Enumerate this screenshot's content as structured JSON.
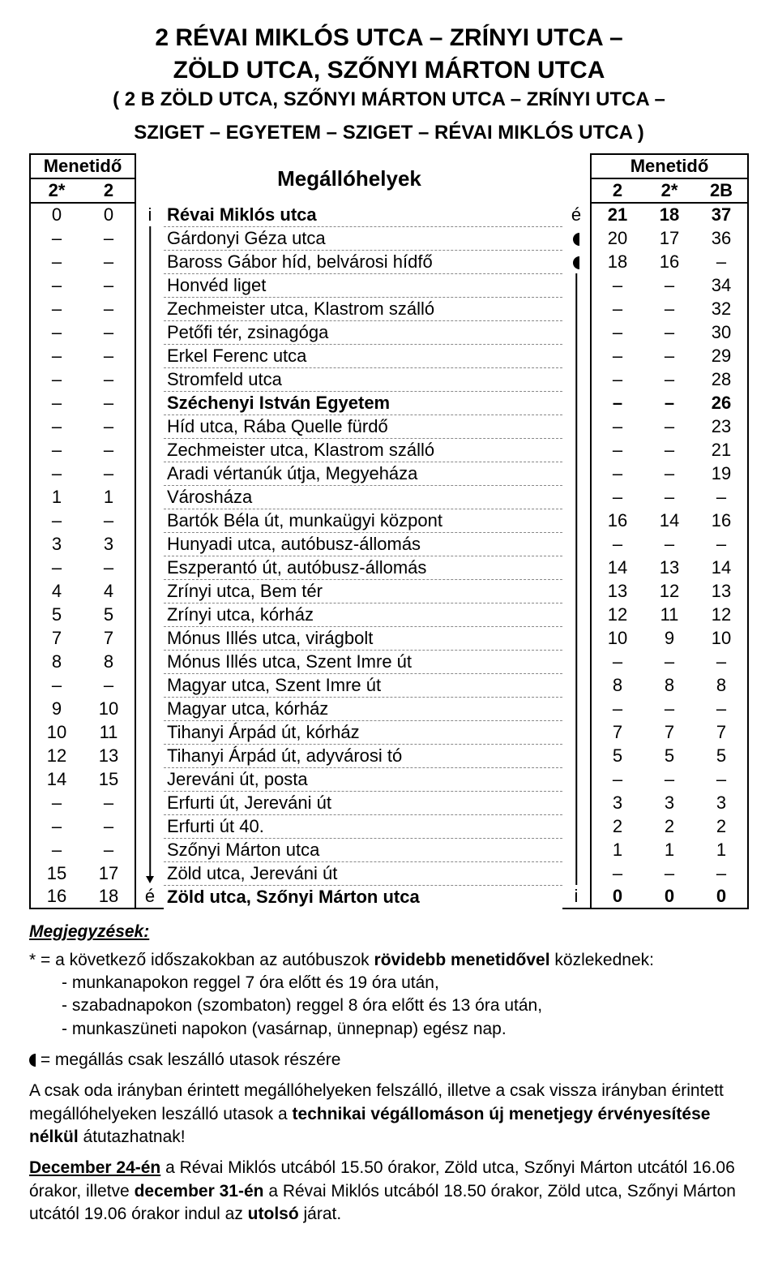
{
  "title_line1": "2  RÉVAI MIKLÓS UTCA – ZRÍNYI UTCA –",
  "title_line2": "ZÖLD UTCA, SZŐNYI MÁRTON UTCA",
  "subtitle_line1": "( 2 B  ZÖLD UTCA, SZŐNYI MÁRTON UTCA – ZRÍNYI UTCA –",
  "subtitle_line2": "SZIGET – EGYETEM – SZIGET – RÉVAI MIKLÓS UTCA )",
  "headers": {
    "menetido": "Menetidő",
    "megallo": "Megállóhelyek",
    "l1": "2*",
    "l2": "2",
    "r1": "2",
    "r2": "2*",
    "r3": "2B"
  },
  "rows": [
    {
      "l1": "0",
      "l2": "0",
      "iL": "i",
      "stop": "Révai Miklós utca",
      "iR": "é",
      "r1": "21",
      "r2": "18",
      "r3": "37",
      "bold": true,
      "arrowL": "",
      "arrowR": ""
    },
    {
      "l1": "–",
      "l2": "–",
      "iL": "",
      "stop": "Gárdonyi Géza utca",
      "iR": "◖",
      "r1": "20",
      "r2": "17",
      "r3": "36",
      "arrowR": "up"
    },
    {
      "l1": "–",
      "l2": "–",
      "iL": "",
      "stop": "Baross Gábor híd, belvárosi hídfő",
      "iR": "◖",
      "r1": "18",
      "r2": "16",
      "r3": "–",
      "arrowR": "line"
    },
    {
      "l1": "–",
      "l2": "–",
      "iL": "",
      "stop": "Honvéd liget",
      "iR": "",
      "r1": "–",
      "r2": "–",
      "r3": "34",
      "arrowR": "line"
    },
    {
      "l1": "–",
      "l2": "–",
      "iL": "",
      "stop": "Zechmeister utca, Klastrom szálló",
      "iR": "",
      "r1": "–",
      "r2": "–",
      "r3": "32",
      "arrowR": "line"
    },
    {
      "l1": "–",
      "l2": "–",
      "iL": "",
      "stop": "Petőfi tér, zsinagóga",
      "iR": "",
      "r1": "–",
      "r2": "–",
      "r3": "30",
      "arrowR": "line"
    },
    {
      "l1": "–",
      "l2": "–",
      "iL": "",
      "stop": "Erkel Ferenc utca",
      "iR": "",
      "r1": "–",
      "r2": "–",
      "r3": "29",
      "arrowR": "line"
    },
    {
      "l1": "–",
      "l2": "–",
      "iL": "",
      "stop": "Stromfeld utca",
      "iR": "",
      "r1": "–",
      "r2": "–",
      "r3": "28",
      "arrowR": "line"
    },
    {
      "l1": "–",
      "l2": "–",
      "iL": "",
      "stop": "Széchenyi István Egyetem",
      "iR": "",
      "r1": "–",
      "r2": "–",
      "r3": "26",
      "bold": true,
      "arrowR": "line"
    },
    {
      "l1": "–",
      "l2": "–",
      "iL": "",
      "stop": "Híd utca, Rába Quelle fürdő",
      "iR": "",
      "r1": "–",
      "r2": "–",
      "r3": "23",
      "arrowR": "line"
    },
    {
      "l1": "–",
      "l2": "–",
      "iL": "",
      "stop": "Zechmeister utca, Klastrom szálló",
      "iR": "",
      "r1": "–",
      "r2": "–",
      "r3": "21",
      "arrowR": "line"
    },
    {
      "l1": "–",
      "l2": "–",
      "iL": "",
      "stop": "Aradi vértanúk útja, Megyeháza",
      "iR": "",
      "r1": "–",
      "r2": "–",
      "r3": "19",
      "arrowR": "line"
    },
    {
      "l1": "1",
      "l2": "1",
      "iL": "",
      "stop": "Városháza",
      "iR": "",
      "r1": "–",
      "r2": "–",
      "r3": "–",
      "arrowR": "line"
    },
    {
      "l1": "–",
      "l2": "–",
      "iL": "",
      "stop": "Bartók Béla út, munkaügyi központ",
      "iR": "",
      "r1": "16",
      "r2": "14",
      "r3": "16",
      "arrowR": "line"
    },
    {
      "l1": "3",
      "l2": "3",
      "iL": "",
      "stop": "Hunyadi utca, autóbusz-állomás",
      "iR": "",
      "r1": "–",
      "r2": "–",
      "r3": "–",
      "arrowR": "line"
    },
    {
      "l1": "–",
      "l2": "–",
      "iL": "",
      "stop": "Eszperantó út, autóbusz-állomás",
      "iR": "",
      "r1": "14",
      "r2": "13",
      "r3": "14",
      "arrowR": "line"
    },
    {
      "l1": "4",
      "l2": "4",
      "iL": "",
      "stop": "Zrínyi utca, Bem tér",
      "iR": "",
      "r1": "13",
      "r2": "12",
      "r3": "13",
      "arrowR": "line"
    },
    {
      "l1": "5",
      "l2": "5",
      "iL": "",
      "stop": "Zrínyi utca, kórház",
      "iR": "",
      "r1": "12",
      "r2": "11",
      "r3": "12",
      "arrowR": "line"
    },
    {
      "l1": "7",
      "l2": "7",
      "iL": "",
      "stop": "Mónus Illés utca, virágbolt",
      "iR": "",
      "r1": "10",
      "r2": "9",
      "r3": "10",
      "arrowR": "line"
    },
    {
      "l1": "8",
      "l2": "8",
      "iL": "",
      "stop": "Mónus Illés utca, Szent Imre út",
      "iR": "",
      "r1": "–",
      "r2": "–",
      "r3": "–",
      "arrowR": "line"
    },
    {
      "l1": "–",
      "l2": "–",
      "iL": "",
      "stop": "Magyar utca, Szent Imre út",
      "iR": "",
      "r1": "8",
      "r2": "8",
      "r3": "8",
      "arrowR": "line"
    },
    {
      "l1": "9",
      "l2": "10",
      "iL": "",
      "stop": "Magyar utca, kórház",
      "iR": "",
      "r1": "–",
      "r2": "–",
      "r3": "–",
      "arrowR": "line"
    },
    {
      "l1": "10",
      "l2": "11",
      "iL": "",
      "stop": "Tihanyi Árpád út, kórház",
      "iR": "",
      "r1": "7",
      "r2": "7",
      "r3": "7",
      "arrowR": "line"
    },
    {
      "l1": "12",
      "l2": "13",
      "iL": "",
      "stop": "Tihanyi Árpád út, adyvárosi tó",
      "iR": "",
      "r1": "5",
      "r2": "5",
      "r3": "5",
      "arrowR": "line"
    },
    {
      "l1": "14",
      "l2": "15",
      "iL": "",
      "stop": "Jereváni út, posta",
      "iR": "",
      "r1": "–",
      "r2": "–",
      "r3": "–",
      "arrowR": "line"
    },
    {
      "l1": "–",
      "l2": "–",
      "iL": "",
      "stop": "Erfurti út, Jereváni út",
      "iR": "",
      "r1": "3",
      "r2": "3",
      "r3": "3",
      "arrowR": "line"
    },
    {
      "l1": "–",
      "l2": "–",
      "iL": "",
      "stop": "Erfurti út 40.",
      "iR": "",
      "r1": "2",
      "r2": "2",
      "r3": "2",
      "arrowR": "line"
    },
    {
      "l1": "–",
      "l2": "–",
      "iL": "",
      "stop": "Szőnyi Márton utca",
      "iR": "",
      "r1": "1",
      "r2": "1",
      "r3": "1",
      "arrowR": "line"
    },
    {
      "l1": "15",
      "l2": "17",
      "iL": "",
      "stop": "Zöld utca, Jereváni út",
      "iR": "",
      "r1": "–",
      "r2": "–",
      "r3": "–",
      "arrowL": "down",
      "arrowR": "line"
    },
    {
      "l1": "16",
      "l2": "18",
      "iL": "é",
      "stop": "Zöld utca, Szőnyi Márton utca",
      "iR": "i",
      "r1": "0",
      "r2": "0",
      "r3": "0",
      "bold": true,
      "last": true
    }
  ],
  "notes": {
    "heading": "Megjegyzések:",
    "p1a": "* = a következő időszakokban az autóbuszok ",
    "p1b": "rövidebb menetidővel",
    "p1c": " közlekednek:",
    "p1_li1": "- munkanapokon reggel 7 óra előtt és 19 óra után,",
    "p1_li2": "- szabadnapokon (szombaton) reggel 8 óra előtt és 13 óra után,",
    "p1_li3": "- munkaszüneti napokon (vasárnap, ünnepnap) egész nap.",
    "p2": " = megállás csak leszálló utasok részére",
    "p3a": "A csak oda irányban érintett megállóhelyeken felszálló, illetve a csak vissza irányban érintett megállóhelyeken leszálló utasok a ",
    "p3b": "technikai végállomáson új menetjegy érvényesítése nélkül",
    "p3c": " átutazhatnak!",
    "p4a": "December 24-én",
    "p4b": " a Révai Miklós utcából 15.50 órakor, Zöld utca, Szőnyi Márton utcától 16.06 órakor, illetve ",
    "p4c": "december 31-én",
    "p4d": " a Révai Miklós utcából 18.50 órakor, Zöld utca, Szőnyi Márton utcától 19.06 órakor indul az ",
    "p4e": "utolsó",
    "p4f": " járat."
  }
}
